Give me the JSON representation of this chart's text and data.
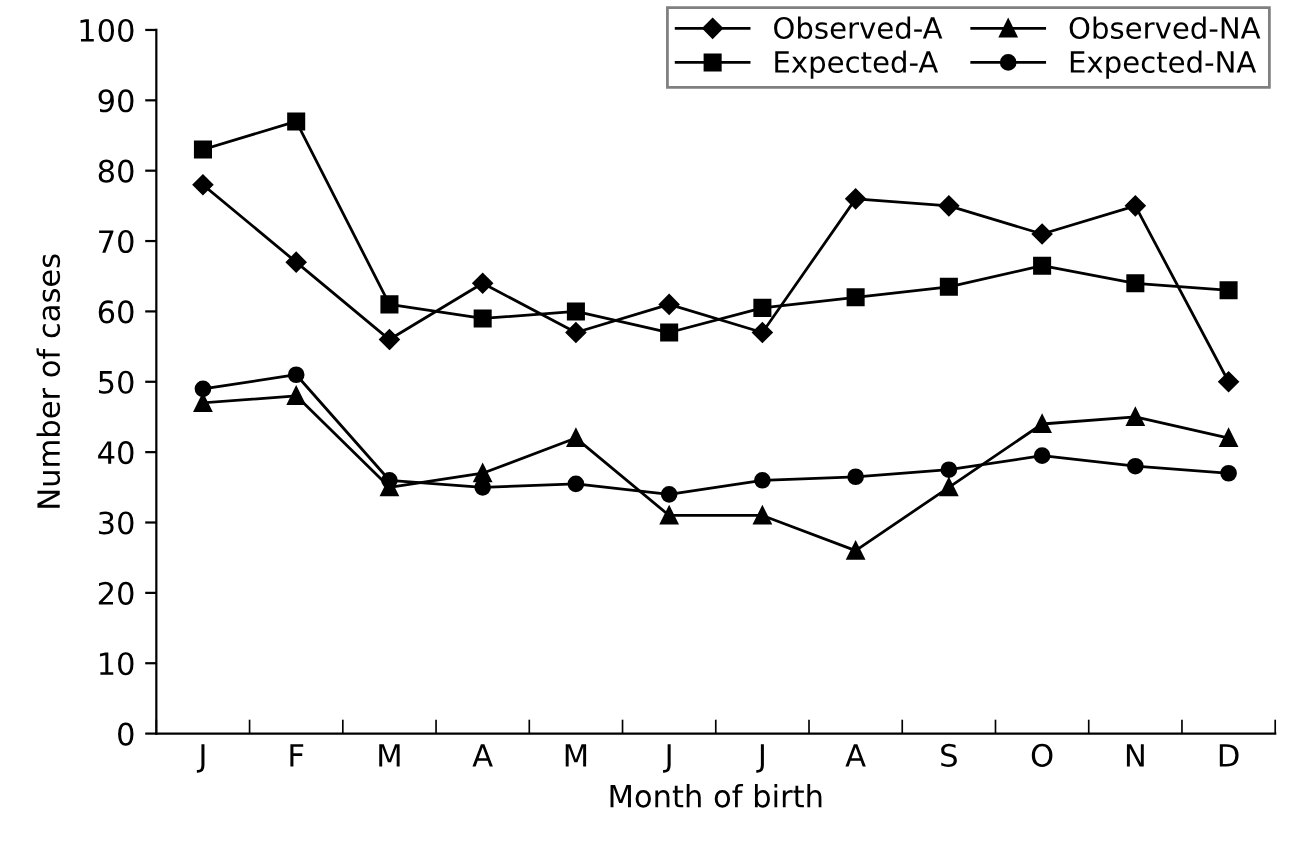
{
  "chart_data": {
    "type": "line",
    "xlabel": "Month of birth",
    "ylabel": "Number of cases",
    "categories": [
      "J",
      "F",
      "M",
      "A",
      "M",
      "J",
      "J",
      "A",
      "S",
      "O",
      "N",
      "D"
    ],
    "series": [
      {
        "name": "Observed-A",
        "color": "#000000",
        "marker": "diamond",
        "values": [
          78,
          67,
          56,
          64,
          57,
          61,
          57,
          76,
          75,
          71,
          75,
          50
        ]
      },
      {
        "name": "Expected-A",
        "color": "#000000",
        "marker": "square",
        "values": [
          83,
          87,
          61,
          59,
          60,
          57,
          60.5,
          62,
          63.5,
          66.5,
          64,
          63
        ]
      },
      {
        "name": "Observed-NA",
        "color": "#000000",
        "marker": "triangle",
        "values": [
          47,
          48,
          35,
          37,
          42,
          31,
          31,
          26,
          35,
          44,
          45,
          42
        ]
      },
      {
        "name": "Expected-NA",
        "color": "#000000",
        "marker": "circle",
        "values": [
          49,
          51,
          36,
          35,
          35.5,
          34,
          36,
          36.5,
          37.5,
          39.5,
          38,
          37
        ]
      }
    ],
    "ylim": [
      0,
      100
    ],
    "yticks": [
      0,
      10,
      20,
      30,
      40,
      50,
      60,
      70,
      80,
      90,
      100
    ],
    "grid": false,
    "legend": "top right",
    "line_style": "solid"
  }
}
